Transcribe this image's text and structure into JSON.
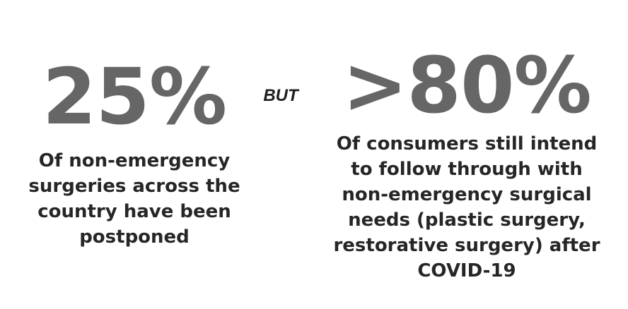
{
  "left_stat": {
    "value": "25%",
    "description": "Of non-emergency surgeries across the country have been postponed"
  },
  "connector": "BUT",
  "right_stat": {
    "value": ">80%",
    "description": "Of consumers still intend to follow through with non-emergency surgical needs (plastic surgery, restorative surgery) after COVID-19"
  },
  "colors": {
    "stat_number": "#666666",
    "body_text": "#262626",
    "background": "#ffffff"
  }
}
